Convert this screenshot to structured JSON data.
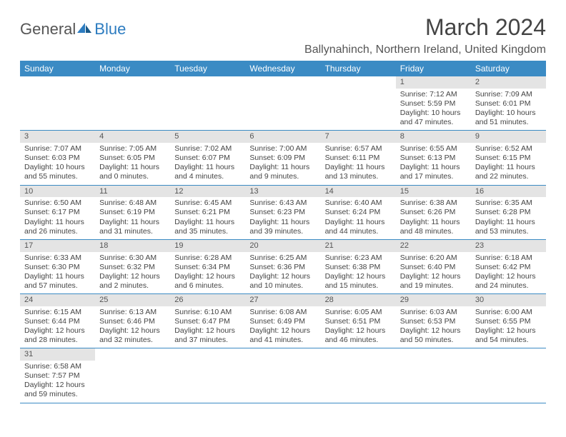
{
  "logo": {
    "text1": "General",
    "text2": "Blue"
  },
  "title": "March 2024",
  "location": "Ballynahinch, Northern Ireland, United Kingdom",
  "header_bg": "#3b8bc4",
  "daynum_bg": "#e4e4e4",
  "dayNames": [
    "Sunday",
    "Monday",
    "Tuesday",
    "Wednesday",
    "Thursday",
    "Friday",
    "Saturday"
  ],
  "weeks": [
    [
      null,
      null,
      null,
      null,
      null,
      {
        "num": "1",
        "sunrise": "Sunrise: 7:12 AM",
        "sunset": "Sunset: 5:59 PM",
        "daylight1": "Daylight: 10 hours",
        "daylight2": "and 47 minutes."
      },
      {
        "num": "2",
        "sunrise": "Sunrise: 7:09 AM",
        "sunset": "Sunset: 6:01 PM",
        "daylight1": "Daylight: 10 hours",
        "daylight2": "and 51 minutes."
      }
    ],
    [
      {
        "num": "3",
        "sunrise": "Sunrise: 7:07 AM",
        "sunset": "Sunset: 6:03 PM",
        "daylight1": "Daylight: 10 hours",
        "daylight2": "and 55 minutes."
      },
      {
        "num": "4",
        "sunrise": "Sunrise: 7:05 AM",
        "sunset": "Sunset: 6:05 PM",
        "daylight1": "Daylight: 11 hours",
        "daylight2": "and 0 minutes."
      },
      {
        "num": "5",
        "sunrise": "Sunrise: 7:02 AM",
        "sunset": "Sunset: 6:07 PM",
        "daylight1": "Daylight: 11 hours",
        "daylight2": "and 4 minutes."
      },
      {
        "num": "6",
        "sunrise": "Sunrise: 7:00 AM",
        "sunset": "Sunset: 6:09 PM",
        "daylight1": "Daylight: 11 hours",
        "daylight2": "and 9 minutes."
      },
      {
        "num": "7",
        "sunrise": "Sunrise: 6:57 AM",
        "sunset": "Sunset: 6:11 PM",
        "daylight1": "Daylight: 11 hours",
        "daylight2": "and 13 minutes."
      },
      {
        "num": "8",
        "sunrise": "Sunrise: 6:55 AM",
        "sunset": "Sunset: 6:13 PM",
        "daylight1": "Daylight: 11 hours",
        "daylight2": "and 17 minutes."
      },
      {
        "num": "9",
        "sunrise": "Sunrise: 6:52 AM",
        "sunset": "Sunset: 6:15 PM",
        "daylight1": "Daylight: 11 hours",
        "daylight2": "and 22 minutes."
      }
    ],
    [
      {
        "num": "10",
        "sunrise": "Sunrise: 6:50 AM",
        "sunset": "Sunset: 6:17 PM",
        "daylight1": "Daylight: 11 hours",
        "daylight2": "and 26 minutes."
      },
      {
        "num": "11",
        "sunrise": "Sunrise: 6:48 AM",
        "sunset": "Sunset: 6:19 PM",
        "daylight1": "Daylight: 11 hours",
        "daylight2": "and 31 minutes."
      },
      {
        "num": "12",
        "sunrise": "Sunrise: 6:45 AM",
        "sunset": "Sunset: 6:21 PM",
        "daylight1": "Daylight: 11 hours",
        "daylight2": "and 35 minutes."
      },
      {
        "num": "13",
        "sunrise": "Sunrise: 6:43 AM",
        "sunset": "Sunset: 6:23 PM",
        "daylight1": "Daylight: 11 hours",
        "daylight2": "and 39 minutes."
      },
      {
        "num": "14",
        "sunrise": "Sunrise: 6:40 AM",
        "sunset": "Sunset: 6:24 PM",
        "daylight1": "Daylight: 11 hours",
        "daylight2": "and 44 minutes."
      },
      {
        "num": "15",
        "sunrise": "Sunrise: 6:38 AM",
        "sunset": "Sunset: 6:26 PM",
        "daylight1": "Daylight: 11 hours",
        "daylight2": "and 48 minutes."
      },
      {
        "num": "16",
        "sunrise": "Sunrise: 6:35 AM",
        "sunset": "Sunset: 6:28 PM",
        "daylight1": "Daylight: 11 hours",
        "daylight2": "and 53 minutes."
      }
    ],
    [
      {
        "num": "17",
        "sunrise": "Sunrise: 6:33 AM",
        "sunset": "Sunset: 6:30 PM",
        "daylight1": "Daylight: 11 hours",
        "daylight2": "and 57 minutes."
      },
      {
        "num": "18",
        "sunrise": "Sunrise: 6:30 AM",
        "sunset": "Sunset: 6:32 PM",
        "daylight1": "Daylight: 12 hours",
        "daylight2": "and 2 minutes."
      },
      {
        "num": "19",
        "sunrise": "Sunrise: 6:28 AM",
        "sunset": "Sunset: 6:34 PM",
        "daylight1": "Daylight: 12 hours",
        "daylight2": "and 6 minutes."
      },
      {
        "num": "20",
        "sunrise": "Sunrise: 6:25 AM",
        "sunset": "Sunset: 6:36 PM",
        "daylight1": "Daylight: 12 hours",
        "daylight2": "and 10 minutes."
      },
      {
        "num": "21",
        "sunrise": "Sunrise: 6:23 AM",
        "sunset": "Sunset: 6:38 PM",
        "daylight1": "Daylight: 12 hours",
        "daylight2": "and 15 minutes."
      },
      {
        "num": "22",
        "sunrise": "Sunrise: 6:20 AM",
        "sunset": "Sunset: 6:40 PM",
        "daylight1": "Daylight: 12 hours",
        "daylight2": "and 19 minutes."
      },
      {
        "num": "23",
        "sunrise": "Sunrise: 6:18 AM",
        "sunset": "Sunset: 6:42 PM",
        "daylight1": "Daylight: 12 hours",
        "daylight2": "and 24 minutes."
      }
    ],
    [
      {
        "num": "24",
        "sunrise": "Sunrise: 6:15 AM",
        "sunset": "Sunset: 6:44 PM",
        "daylight1": "Daylight: 12 hours",
        "daylight2": "and 28 minutes."
      },
      {
        "num": "25",
        "sunrise": "Sunrise: 6:13 AM",
        "sunset": "Sunset: 6:46 PM",
        "daylight1": "Daylight: 12 hours",
        "daylight2": "and 32 minutes."
      },
      {
        "num": "26",
        "sunrise": "Sunrise: 6:10 AM",
        "sunset": "Sunset: 6:47 PM",
        "daylight1": "Daylight: 12 hours",
        "daylight2": "and 37 minutes."
      },
      {
        "num": "27",
        "sunrise": "Sunrise: 6:08 AM",
        "sunset": "Sunset: 6:49 PM",
        "daylight1": "Daylight: 12 hours",
        "daylight2": "and 41 minutes."
      },
      {
        "num": "28",
        "sunrise": "Sunrise: 6:05 AM",
        "sunset": "Sunset: 6:51 PM",
        "daylight1": "Daylight: 12 hours",
        "daylight2": "and 46 minutes."
      },
      {
        "num": "29",
        "sunrise": "Sunrise: 6:03 AM",
        "sunset": "Sunset: 6:53 PM",
        "daylight1": "Daylight: 12 hours",
        "daylight2": "and 50 minutes."
      },
      {
        "num": "30",
        "sunrise": "Sunrise: 6:00 AM",
        "sunset": "Sunset: 6:55 PM",
        "daylight1": "Daylight: 12 hours",
        "daylight2": "and 54 minutes."
      }
    ],
    [
      {
        "num": "31",
        "sunrise": "Sunrise: 6:58 AM",
        "sunset": "Sunset: 7:57 PM",
        "daylight1": "Daylight: 12 hours",
        "daylight2": "and 59 minutes."
      },
      null,
      null,
      null,
      null,
      null,
      null
    ]
  ]
}
